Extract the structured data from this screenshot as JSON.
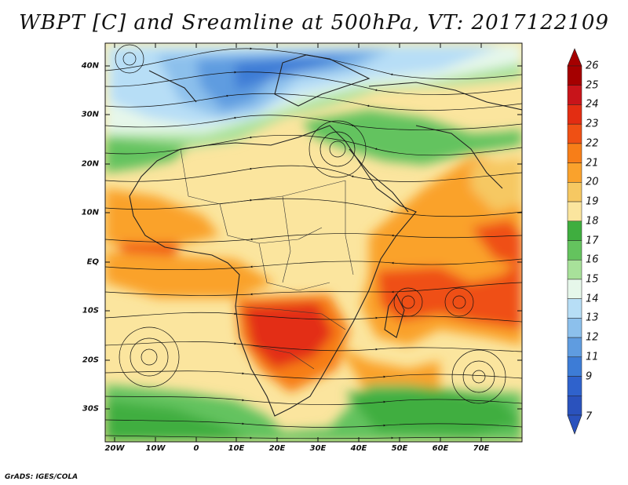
{
  "title": "WBPT [C] and Sreamline at 500hPa, VT: 2017122109",
  "footer": "GrADS: IGES/COLA",
  "lat_labels": [
    "40N",
    "30N",
    "20N",
    "10N",
    "EQ",
    "10S",
    "20S",
    "30S"
  ],
  "lon_labels": [
    "20W",
    "10W",
    "0",
    "10E",
    "20E",
    "30E",
    "40E",
    "50E",
    "60E",
    "70E"
  ],
  "colorbar": {
    "labels": [
      "26",
      "25",
      "24",
      "23",
      "22",
      "21",
      "20",
      "19",
      "18",
      "17",
      "16",
      "15",
      "14",
      "13",
      "12",
      "11",
      "9",
      "7"
    ],
    "colors": [
      "#a50000",
      "#c8141a",
      "#e32d12",
      "#ef5014",
      "#f77e18",
      "#faa22c",
      "#f6c862",
      "#fbe59e",
      "#3fae3f",
      "#64c35e",
      "#a8e19a",
      "#e6f7ea",
      "#b7def6",
      "#8cc0ec",
      "#5f9ce0",
      "#3d7cd6",
      "#2f62cc",
      "#2a52bd"
    ],
    "top_arrow_color": "#a50000",
    "bottom_arrow_color": "#2a52bd"
  },
  "map": {
    "lon_range": [
      -22,
      80
    ],
    "lat_range": [
      -37,
      45
    ],
    "ocean_color": "#fbe59e"
  }
}
